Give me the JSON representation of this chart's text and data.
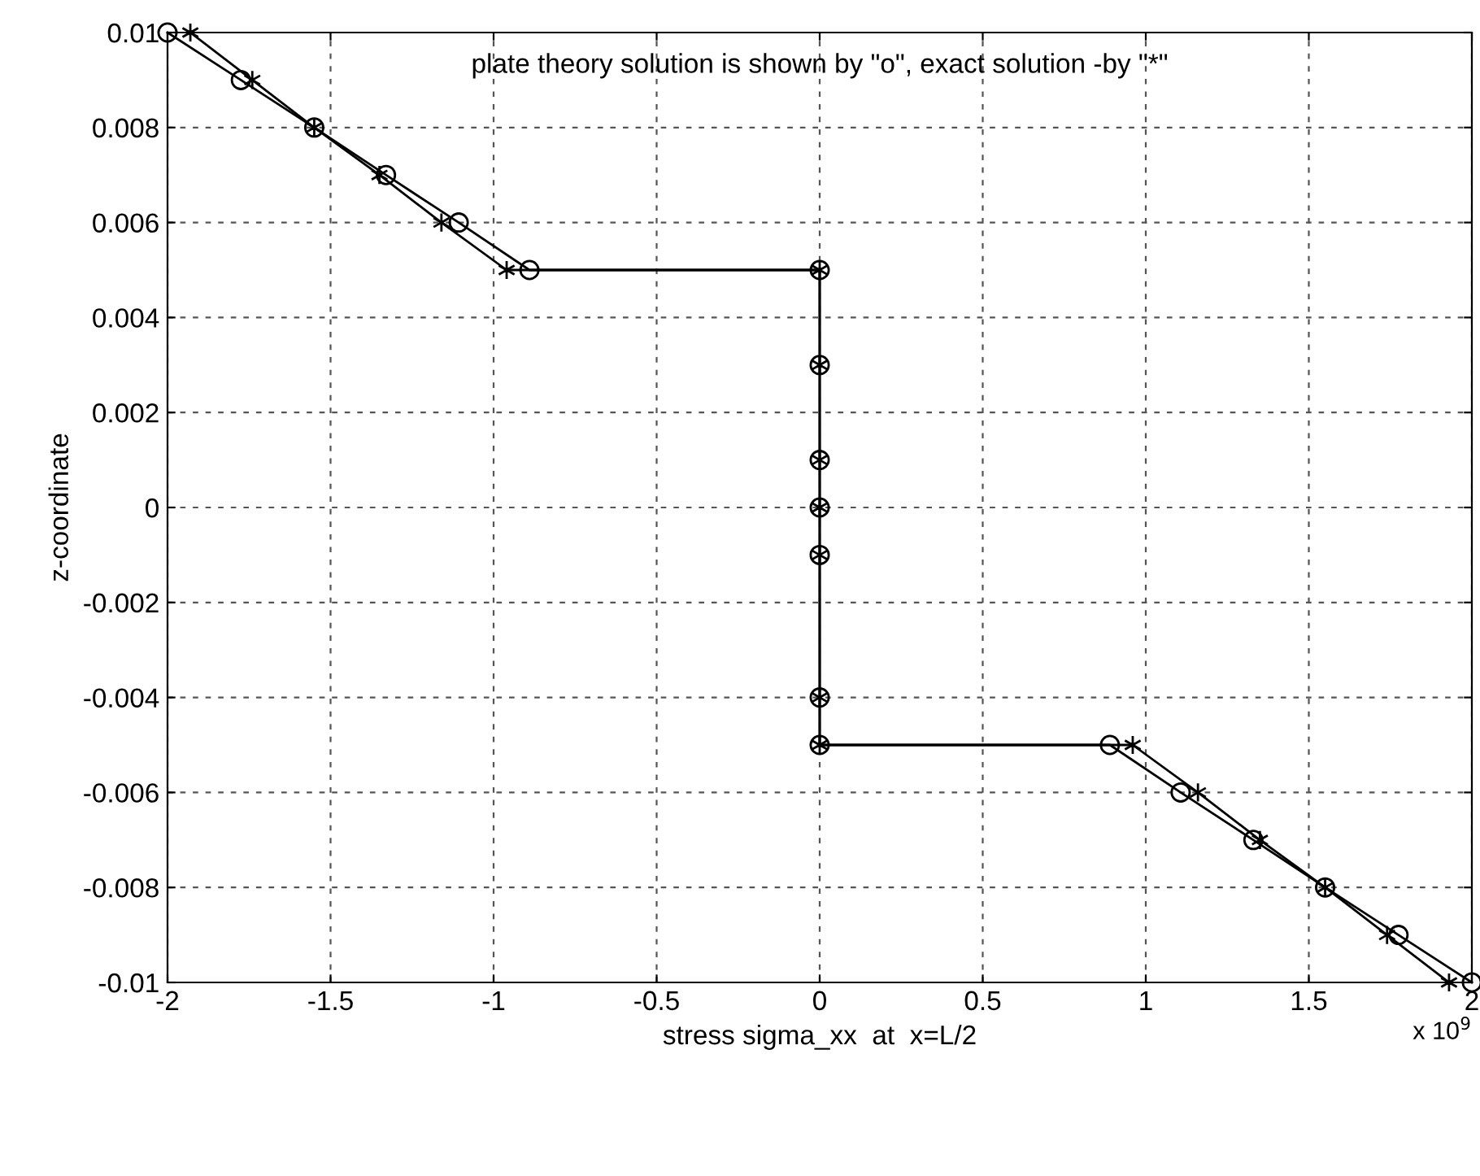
{
  "chart_data": {
    "type": "line",
    "xlabel": "stress sigma_xx  at  x=L/2",
    "ylabel": "z-coordinate",
    "annotations": [
      "plate theory solution is shown by \"o\", exact solution -by \"*\"",
      "x 10$^{9}$"
    ],
    "series": [
      {
        "color": "#000000",
        "marker": "circle",
        "x": [
          -2,
          -1.775,
          -1.55,
          -1.33,
          -1.107,
          -0.89,
          0,
          0,
          0,
          0,
          0,
          0,
          0,
          0.89,
          1.107,
          1.33,
          1.55,
          1.775,
          2
        ],
        "values": [
          0.01,
          0.009,
          0.008,
          0.007,
          0.006,
          0.005,
          0.005,
          0.003,
          0.001,
          0,
          -0.001,
          -0.004,
          -0.005,
          -0.005,
          -0.006,
          -0.007,
          -0.008,
          -0.009,
          -0.01
        ]
      },
      {
        "color": "#000000",
        "marker": "cross",
        "x": [
          -1.93,
          -1.74,
          -1.55,
          -1.35,
          -1.16,
          -0.96,
          0,
          0,
          0,
          0,
          0,
          0,
          0,
          0.96,
          1.16,
          1.35,
          1.55,
          1.74,
          1.93
        ],
        "values": [
          0.01,
          0.009,
          0.008,
          0.007,
          0.006,
          0.005,
          0.005,
          0.003,
          0.001,
          0,
          -0.001,
          -0.004,
          -0.005,
          -0.005,
          -0.006,
          -0.007,
          -0.008,
          -0.009,
          -0.01
        ]
      }
    ],
    "xlim": [
      -2,
      2
    ],
    "xticks": [
      -2,
      -1.5,
      -1,
      -0.5,
      0,
      0.5,
      1,
      1.5,
      2
    ],
    "ylim": [
      -0.01,
      0.01
    ],
    "yticks": [
      -0.01,
      -0.008,
      -0.006,
      -0.004,
      -0.002,
      0,
      0.002,
      0.004,
      0.006,
      0.008,
      0.01
    ],
    "grid": true,
    "line_style": "solid"
  }
}
